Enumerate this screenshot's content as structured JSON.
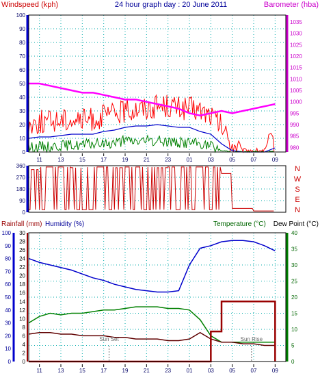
{
  "header": {
    "left_label": "Windspeed (kph)",
    "title": "24 hour graph day : 20 June 2011",
    "right_label": "Barometer (hba)"
  },
  "colors": {
    "axis_left": "#0000cc",
    "axis_right": "#cc00cc",
    "windspeed": "#ff0000",
    "windspeed_avg": "#0000cc",
    "windspeed_min": "#008000",
    "barometer": "#ff00ff",
    "direction": "#cc0000",
    "temperature": "#008000",
    "humidity": "#0000cc",
    "dewpoint": "#600000",
    "rainfall": "#990000",
    "sunmarker": "#666666",
    "grid": "#00aaaa"
  },
  "chart_data": [
    {
      "type": "line",
      "title": "24 hour graph day : 20 June 2011",
      "ylabel": "Windspeed (kph)",
      "y2label": "Barometer (hba)",
      "xticks": [
        "11",
        "13",
        "15",
        "17",
        "19",
        "21",
        "23",
        "01",
        "03",
        "05",
        "07",
        "09"
      ],
      "ylim": [
        0,
        100
      ],
      "yticks": [
        0,
        10,
        20,
        30,
        40,
        50,
        60,
        70,
        80,
        90,
        100
      ],
      "y2lim": [
        978,
        1038
      ],
      "y2ticks": [
        980,
        985,
        990,
        995,
        1000,
        1005,
        1010,
        1015,
        1020,
        1025,
        1030,
        1035
      ],
      "grid": true,
      "series": [
        {
          "role": "wind_gust",
          "x": [
            10,
            11,
            12,
            13,
            14,
            15,
            16,
            17,
            18,
            19,
            20,
            21,
            22,
            23,
            24,
            25,
            26,
            27,
            28,
            29,
            30,
            31,
            32,
            33
          ],
          "y": [
            20,
            22,
            22,
            24,
            24,
            23,
            24,
            26,
            28,
            30,
            32,
            32,
            34,
            34,
            32,
            32,
            30,
            27,
            18,
            5,
            1,
            1,
            1,
            10
          ]
        },
        {
          "role": "wind_avg",
          "x": [
            10,
            11,
            12,
            13,
            14,
            15,
            16,
            17,
            18,
            19,
            20,
            21,
            22,
            23,
            24,
            25,
            26,
            27,
            28,
            29,
            30,
            31,
            32,
            33
          ],
          "y": [
            10,
            11,
            11,
            12,
            13,
            13,
            13,
            15,
            16,
            18,
            19,
            19,
            20,
            19,
            18,
            18,
            15,
            13,
            6,
            1,
            0,
            0,
            0,
            3
          ]
        },
        {
          "role": "wind_min",
          "x": [
            10,
            11,
            12,
            13,
            14,
            15,
            16,
            17,
            18,
            19,
            20,
            21,
            22,
            23,
            24,
            25,
            26,
            27,
            28,
            29,
            30,
            31,
            32,
            33
          ],
          "y": [
            3,
            4,
            4,
            5,
            5,
            5,
            6,
            6,
            7,
            8,
            8,
            8,
            8,
            8,
            7,
            7,
            6,
            4,
            1,
            0,
            0,
            0,
            0,
            0
          ]
        },
        {
          "name": "Barometer",
          "role": "barometer",
          "axis": "y2",
          "x": [
            10,
            11,
            12,
            13,
            14,
            15,
            16,
            17,
            18,
            19,
            20,
            21,
            22,
            23,
            24,
            25,
            26,
            27,
            28,
            29,
            30,
            31,
            32,
            33
          ],
          "y": [
            1008,
            1008,
            1007,
            1006,
            1005,
            1004,
            1004,
            1003,
            1002,
            1001,
            1001,
            1000,
            999,
            998,
            997,
            995,
            994,
            995,
            996,
            995,
            996,
            997,
            998,
            999
          ]
        }
      ]
    },
    {
      "type": "line",
      "ylabels_right": [
        "N",
        "W",
        "S",
        "E",
        "N"
      ],
      "ylim": [
        0,
        360
      ],
      "yticks": [
        0,
        90,
        180,
        270,
        360
      ],
      "xticks": [
        "11",
        "13",
        "15",
        "17",
        "19",
        "21",
        "23",
        "01",
        "03",
        "05",
        "07",
        "09"
      ],
      "grid": true,
      "series": [
        {
          "role": "wind_direction",
          "x": [
            10,
            11,
            12,
            13,
            14,
            15,
            16,
            17,
            18,
            19,
            20,
            21,
            22,
            23,
            24,
            25,
            26,
            27,
            28,
            29,
            30,
            31,
            32,
            33
          ],
          "y": [
            330,
            350,
            350,
            350,
            345,
            350,
            350,
            350,
            345,
            350,
            350,
            350,
            345,
            350,
            350,
            350,
            350,
            350,
            300,
            30,
            30,
            10,
            10,
            330
          ]
        }
      ]
    },
    {
      "type": "line",
      "left_labels": [
        "Rainfall (mm)",
        "Humidity (%)"
      ],
      "right_labels": [
        "Temperature (°C)",
        "Dew Point (°C)"
      ],
      "xticks": [
        "11",
        "13",
        "15",
        "17",
        "19",
        "21",
        "23",
        "01",
        "03",
        "05",
        "07",
        "09"
      ],
      "humidity_lim": [
        0,
        100
      ],
      "humidity_ticks": [
        0,
        10,
        20,
        30,
        40,
        50,
        60,
        70,
        80,
        90,
        100
      ],
      "rain_lim": [
        0,
        30
      ],
      "rain_ticks": [
        0,
        2,
        4,
        6,
        8,
        10,
        12,
        14,
        16,
        18,
        20,
        22,
        24,
        26,
        28,
        30
      ],
      "temp_lim": [
        0,
        40
      ],
      "temp_ticks": [
        0,
        5,
        10,
        15,
        20,
        25,
        30,
        35,
        40
      ],
      "annotations": [
        "Sun Set",
        "Sun Rise"
      ],
      "grid": true,
      "series": [
        {
          "role": "humidity",
          "axis": "humidity",
          "x": [
            10,
            11,
            12,
            13,
            14,
            15,
            16,
            17,
            18,
            19,
            20,
            21,
            22,
            23,
            24,
            25,
            26,
            27,
            28,
            29,
            30,
            31,
            32,
            33
          ],
          "y": [
            80,
            77,
            75,
            73,
            71,
            68,
            65,
            63,
            60,
            58,
            56,
            55,
            54,
            54,
            55,
            75,
            88,
            90,
            93,
            94,
            94,
            93,
            90,
            86
          ]
        },
        {
          "role": "temperature",
          "axis": "temp",
          "x": [
            10,
            11,
            12,
            13,
            14,
            15,
            16,
            17,
            18,
            19,
            20,
            21,
            22,
            23,
            24,
            25,
            26,
            27,
            28,
            29,
            30,
            31,
            32,
            33
          ],
          "y": [
            12,
            14,
            15,
            14.5,
            15,
            15,
            15.5,
            16,
            16,
            16.5,
            17,
            17,
            17,
            16.5,
            16.5,
            16,
            13,
            8,
            6,
            6,
            6,
            6,
            6,
            6
          ]
        },
        {
          "role": "dewpoint",
          "axis": "temp",
          "x": [
            10,
            11,
            12,
            13,
            14,
            15,
            16,
            17,
            18,
            19,
            20,
            21,
            22,
            23,
            24,
            25,
            26,
            27,
            28,
            29,
            30,
            31,
            32,
            33
          ],
          "y": [
            8.5,
            9,
            9,
            8.5,
            8.5,
            8,
            8,
            8,
            7.5,
            7.5,
            7,
            7,
            7,
            6.5,
            6.5,
            7,
            9,
            7,
            6,
            6,
            5.5,
            5.5,
            5,
            5
          ]
        },
        {
          "role": "rainfall",
          "axis": "rain",
          "x": [
            10,
            11,
            12,
            13,
            14,
            15,
            16,
            17,
            18,
            19,
            20,
            21,
            22,
            23,
            24,
            25,
            26,
            27,
            28,
            29,
            30,
            31,
            32,
            33
          ],
          "y": [
            0,
            0,
            0,
            0,
            0,
            0,
            0,
            0,
            0,
            0,
            0,
            0,
            0,
            0,
            0,
            0,
            0,
            7,
            14,
            14,
            14,
            14,
            14,
            0
          ]
        }
      ]
    }
  ]
}
